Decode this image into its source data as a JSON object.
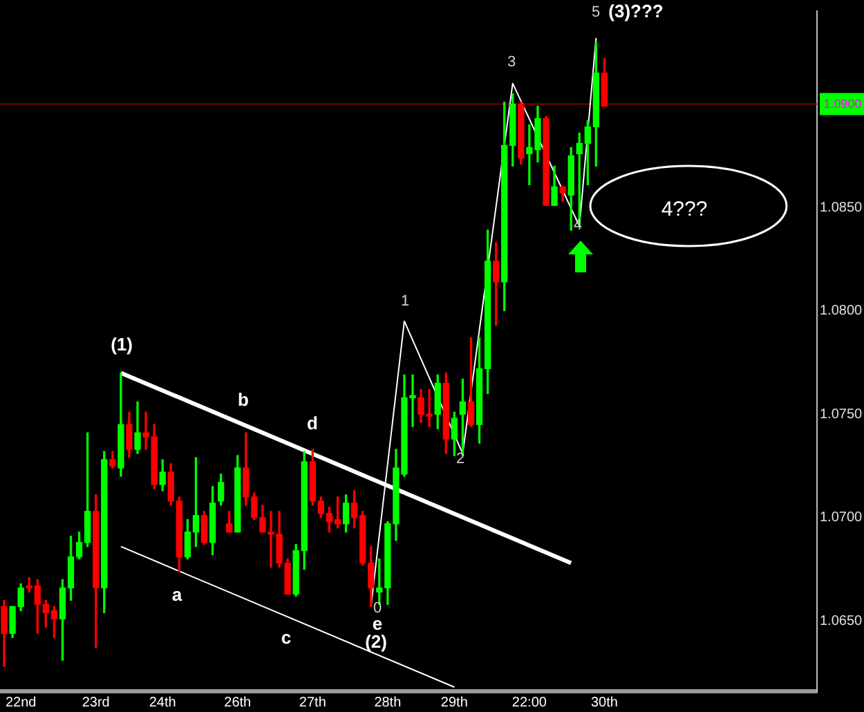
{
  "chart_data": {
    "type": "candlestick",
    "categories": [
      null,
      null,
      "22nd",
      null,
      null,
      null,
      null,
      null,
      null,
      null,
      null,
      "23rd",
      null,
      null,
      null,
      null,
      null,
      null,
      null,
      "24th",
      null,
      null,
      null,
      null,
      null,
      null,
      null,
      null,
      "26th",
      null,
      null,
      null,
      null,
      null,
      null,
      null,
      null,
      "27th",
      null,
      null,
      null,
      null,
      null,
      null,
      null,
      null,
      "28th",
      null,
      null,
      null,
      null,
      null,
      null,
      null,
      "29th",
      null,
      null,
      null,
      null,
      null,
      null,
      null,
      null,
      "22:00",
      null,
      null,
      null,
      null,
      null,
      null,
      null,
      null,
      "30th",
      null,
      null,
      null,
      null,
      null,
      null,
      null,
      null,
      null,
      null,
      null,
      null,
      null,
      null,
      null,
      null,
      null,
      null,
      null,
      null,
      null,
      null,
      null,
      null,
      null
    ],
    "ohlc": [
      [
        1.0657,
        1.066,
        1.0628,
        1.0644
      ],
      [
        1.0644,
        1.0657,
        1.0642,
        1.0657
      ],
      [
        1.0657,
        1.0668,
        1.0655,
        1.0666
      ],
      [
        1.0667,
        1.0671,
        1.0664,
        1.0666
      ],
      [
        1.0667,
        1.067,
        1.0644,
        1.0658
      ],
      [
        1.0658,
        1.066,
        1.0647,
        1.0654
      ],
      [
        1.0655,
        1.0657,
        1.0642,
        1.0651
      ],
      [
        1.0651,
        1.067,
        1.0631,
        1.0666
      ],
      [
        1.0666,
        1.0691,
        1.066,
        1.0681
      ],
      [
        1.0681,
        1.0693,
        1.068,
        1.0688
      ],
      [
        1.0688,
        1.0741,
        1.0686,
        1.0703
      ],
      [
        1.0703,
        1.0711,
        1.0637,
        1.0666
      ],
      [
        1.0666,
        1.0732,
        1.0654,
        1.0728
      ],
      [
        1.0728,
        1.0732,
        1.0724,
        1.0725
      ],
      [
        1.0724,
        1.077,
        1.072,
        1.0745
      ],
      [
        1.0745,
        1.0751,
        1.0729,
        1.0733
      ],
      [
        1.0733,
        1.0756,
        1.0731,
        1.0741
      ],
      [
        1.0741,
        1.0751,
        1.0733,
        1.0739
      ],
      [
        1.0739,
        1.0745,
        1.0714,
        1.0716
      ],
      [
        1.0716,
        1.0728,
        1.0713,
        1.0722
      ],
      [
        1.0722,
        1.0726,
        1.0706,
        1.0708
      ],
      [
        1.0708,
        1.071,
        1.0674,
        1.0681
      ],
      [
        1.0681,
        1.0699,
        1.068,
        1.0693
      ],
      [
        1.0693,
        1.0729,
        1.0686,
        1.0701
      ],
      [
        1.0701,
        1.0703,
        1.0687,
        1.0688
      ],
      [
        1.0688,
        1.0715,
        1.0682,
        1.0707
      ],
      [
        1.0708,
        1.0721,
        1.0706,
        1.0717
      ],
      [
        1.0697,
        1.0703,
        1.0693,
        1.0693
      ],
      [
        1.0693,
        1.073,
        1.0693,
        1.0724
      ],
      [
        1.0724,
        1.0741,
        1.0706,
        1.071
      ],
      [
        1.071,
        1.0712,
        1.0699,
        1.07
      ],
      [
        1.07,
        1.0706,
        1.0693,
        1.0693
      ],
      [
        1.0693,
        1.0703,
        1.0676,
        1.0692
      ],
      [
        1.0692,
        1.0703,
        1.0676,
        1.0678
      ],
      [
        1.0678,
        1.068,
        1.0663,
        1.0663
      ],
      [
        1.0663,
        1.0687,
        1.0662,
        1.0684
      ],
      [
        1.0684,
        1.0732,
        1.0675,
        1.0727
      ],
      [
        1.0727,
        1.0733,
        1.0706,
        1.0708
      ],
      [
        1.0708,
        1.071,
        1.07,
        1.0702
      ],
      [
        1.0702,
        1.0705,
        1.0693,
        1.0698
      ],
      [
        1.0699,
        1.071,
        1.0695,
        1.0697
      ],
      [
        1.0697,
        1.0711,
        1.0693,
        1.0707
      ],
      [
        1.0707,
        1.0713,
        1.0695,
        1.07
      ],
      [
        1.0701,
        1.0703,
        1.0677,
        1.0678
      ],
      [
        1.0678,
        1.0686,
        1.0657,
        1.0666
      ],
      [
        1.0664,
        1.068,
        1.0658,
        1.0666
      ],
      [
        1.0666,
        1.0698,
        1.0658,
        1.0697
      ],
      [
        1.0697,
        1.0733,
        1.0689,
        1.0724
      ],
      [
        1.0721,
        1.0769,
        1.072,
        1.0758
      ],
      [
        1.0758,
        1.0769,
        1.0744,
        1.0759
      ],
      [
        1.0758,
        1.0762,
        1.0746,
        1.075
      ],
      [
        1.075,
        1.0762,
        1.0744,
        1.0749
      ],
      [
        1.075,
        1.0769,
        1.0743,
        1.0765
      ],
      [
        1.0765,
        1.077,
        1.0731,
        1.0738
      ],
      [
        1.0738,
        1.0751,
        1.073,
        1.0748
      ],
      [
        1.075,
        1.0767,
        1.073,
        1.0756
      ],
      [
        1.0756,
        1.0787,
        1.0744,
        1.0745
      ],
      [
        1.0745,
        1.0787,
        1.0736,
        1.0772
      ],
      [
        1.0772,
        1.0839,
        1.076,
        1.0824
      ],
      [
        1.0824,
        1.0833,
        1.0793,
        1.0814
      ],
      [
        1.0814,
        1.0901,
        1.08,
        1.088
      ],
      [
        1.088,
        1.0905,
        1.087,
        1.09
      ],
      [
        1.09,
        1.0901,
        1.0871,
        1.0874
      ],
      [
        1.0876,
        1.089,
        1.0861,
        1.0879
      ],
      [
        1.0878,
        1.0899,
        1.0872,
        1.0893
      ],
      [
        1.0893,
        1.0894,
        1.0851,
        1.0851
      ],
      [
        1.0851,
        1.087,
        1.0851,
        1.086
      ],
      [
        1.086,
        1.086,
        1.0853,
        1.0857
      ],
      [
        1.0856,
        1.0879,
        1.0839,
        1.0875
      ],
      [
        1.0876,
        1.0886,
        1.0841,
        1.0881
      ],
      [
        1.0881,
        1.0892,
        1.0861,
        1.0889
      ],
      [
        1.0889,
        1.093,
        1.087,
        1.0915
      ],
      [
        1.0915,
        1.0922,
        1.0899,
        1.0899
      ],
      null,
      null,
      null,
      null,
      null,
      null,
      null,
      null,
      null,
      null,
      null,
      null,
      null,
      null,
      null,
      null,
      null,
      null,
      null,
      null,
      null,
      null,
      null,
      null,
      null
    ],
    "colors": [
      "#ff0000",
      "#00ff00",
      "#00ff00",
      "#ff0000",
      "#ff0000",
      "#ff0000",
      "#ff0000",
      "#00ff00",
      "#00ff00",
      "#00ff00",
      "#00ff00",
      "#ff0000",
      "#00ff00",
      "#ff0000",
      "#00ff00",
      "#ff0000",
      "#00ff00",
      "#ff0000",
      "#ff0000",
      "#00ff00",
      "#ff0000",
      "#ff0000",
      "#00ff00",
      "#00ff00",
      "#ff0000",
      "#00ff00",
      "#00ff00",
      "#ff0000",
      "#00ff00",
      "#ff0000",
      "#ff0000",
      "#ff0000",
      "#ff0000",
      "#ff0000",
      "#ff0000",
      "#00ff00",
      "#00ff00",
      "#ff0000",
      "#ff0000",
      "#ff0000",
      "#ff0000",
      "#00ff00",
      "#ff0000",
      "#ff0000",
      "#ff0000",
      "#00ff00",
      "#00ff00",
      "#00ff00",
      "#00ff00",
      "#00ff00",
      "#ff0000",
      "#ff0000",
      "#00ff00",
      "#ff0000",
      "#00ff00",
      "#00ff00",
      "#ff0000",
      "#00ff00",
      "#00ff00",
      "#ff0000",
      "#00ff00",
      "#00ff00",
      "#ff0000",
      "#00ff00",
      "#00ff00",
      "#ff0000",
      "#00ff00",
      "#ff0000",
      "#00ff00",
      "#00ff00",
      "#00ff00",
      "#00ff00",
      "#ff0000",
      null,
      null,
      null,
      null,
      null,
      null,
      null,
      null,
      null,
      null,
      null,
      null,
      null,
      null,
      null,
      null,
      null,
      null,
      null,
      null,
      null,
      null,
      null,
      null,
      null
    ],
    "series": [
      {
        "type": "line",
        "color": "#ffffff",
        "values": [
          null,
          null,
          null,
          null,
          null,
          null,
          null,
          null,
          null,
          null,
          null,
          null,
          null,
          null,
          1.077,
          null,
          null,
          null,
          null,
          null,
          null,
          null,
          null,
          null,
          null,
          null,
          null,
          null,
          null,
          null,
          null,
          null,
          null,
          null,
          null,
          null,
          null,
          null,
          null,
          null,
          null,
          null,
          null,
          null,
          null,
          null,
          null,
          null,
          null,
          null,
          null,
          null,
          null,
          null,
          null,
          null,
          null,
          null,
          null,
          null,
          null,
          null,
          null,
          null,
          null,
          null,
          null,
          null,
          1.0678,
          null,
          null,
          null,
          null,
          null,
          null,
          null,
          null,
          null,
          null,
          null,
          null,
          null,
          null,
          null,
          null,
          null,
          null,
          null,
          null,
          null,
          null,
          null,
          null,
          null,
          null,
          null,
          null,
          null
        ]
      },
      {
        "type": "line",
        "color": "#ffffff",
        "values": [
          null,
          null,
          null,
          null,
          null,
          null,
          null,
          null,
          null,
          null,
          null,
          null,
          null,
          null,
          1.0686,
          null,
          null,
          null,
          null,
          null,
          null,
          null,
          null,
          null,
          null,
          null,
          null,
          null,
          null,
          null,
          null,
          null,
          null,
          null,
          null,
          null,
          null,
          null,
          null,
          null,
          null,
          null,
          null,
          null,
          null,
          null,
          null,
          null,
          null,
          null,
          null,
          null,
          null,
          null,
          1.0618,
          null,
          null,
          null,
          null,
          null,
          null,
          null,
          null,
          null,
          null,
          null,
          null,
          null,
          null,
          null,
          null,
          null,
          null,
          null,
          null,
          null,
          null,
          null,
          null,
          null,
          null,
          null,
          null,
          null,
          null,
          null,
          null,
          null,
          null,
          null,
          null,
          null,
          null,
          null,
          null,
          null,
          null,
          null
        ]
      },
      {
        "type": "line",
        "color": "#ffffff",
        "values": [
          null,
          null,
          null,
          null,
          null,
          null,
          null,
          null,
          null,
          null,
          null,
          null,
          null,
          null,
          null,
          null,
          null,
          null,
          null,
          null,
          null,
          null,
          null,
          null,
          null,
          null,
          null,
          null,
          null,
          null,
          null,
          null,
          null,
          null,
          null,
          null,
          null,
          null,
          null,
          null,
          null,
          null,
          null,
          null,
          1.0657,
          null,
          null,
          null,
          1.0795,
          null,
          null,
          null,
          null,
          null,
          null,
          1.0731,
          null,
          null,
          null,
          null,
          null,
          1.091,
          null,
          null,
          null,
          null,
          null,
          null,
          null,
          1.0841,
          null,
          1.0932,
          null,
          null,
          null,
          null,
          null,
          null,
          null,
          null,
          null,
          null,
          null,
          null,
          null,
          null,
          null,
          null,
          null,
          null,
          null,
          null,
          null,
          null,
          null,
          null,
          null,
          null
        ]
      }
    ],
    "ylim": [
      1.0616,
      1.0945
    ],
    "yticks": [
      {
        "value": 1.065,
        "label": "1.0650"
      },
      {
        "value": 1.07,
        "label": "1.0700"
      },
      {
        "value": 1.075,
        "label": "1.0750"
      },
      {
        "value": 1.08,
        "label": "1.0800"
      },
      {
        "value": 1.085,
        "label": "1.0850"
      }
    ],
    "ref_lines": [
      {
        "axis": "y",
        "value": 1.09,
        "label": "1.0900",
        "color": "#800000"
      }
    ],
    "annotations": [
      "(1)",
      "b",
      "d",
      "a",
      "c",
      "0",
      "e",
      "(2)",
      "1",
      "2",
      "3",
      "4",
      "5",
      "(3)???",
      "4???"
    ]
  }
}
